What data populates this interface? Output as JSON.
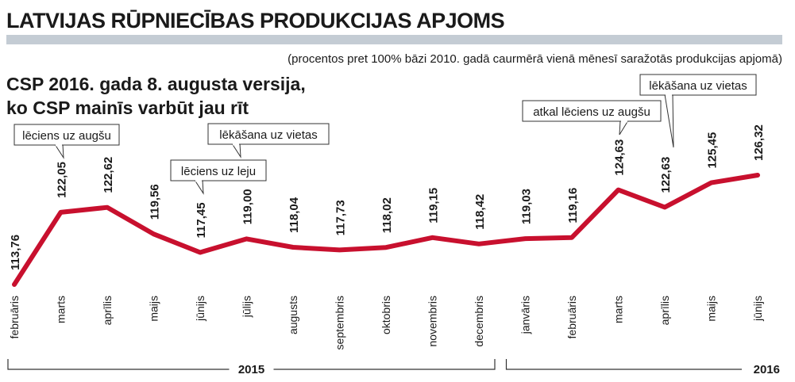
{
  "header": {
    "title": "LATVIJAS RŪPNIECĪBAS PRODUKCIJAS APJOMS",
    "subtitle": "(procentos pret 100% bāzi 2010. gadā caurmērā vienā mēnesī saražotās produkcijas apjomā)",
    "headline_line1": "CSP 2016. gada 8. augusta versija,",
    "headline_line2": "ko CSP mainīs varbūt jau rīt"
  },
  "colors": {
    "line": "#c8102e",
    "text": "#1a1a1a",
    "title_bar": "#c4ccd4"
  },
  "chart_data": {
    "type": "line",
    "title": "LATVIJAS RŪPNIECĪBAS PRODUKCIJAS APJOMS",
    "categories": [
      "februāris",
      "marts",
      "aprīlis",
      "maijs",
      "jūnijs",
      "jūlijs",
      "augusts",
      "septembris",
      "oktobris",
      "novembris",
      "decembris",
      "janvāris",
      "februāris",
      "marts",
      "aprīlis",
      "maijs",
      "jūnijs"
    ],
    "value_labels": [
      "113,76",
      "122,05",
      "122,62",
      "119,56",
      "117,45",
      "119,00",
      "118,04",
      "117,73",
      "118,02",
      "119,15",
      "118,42",
      "119,03",
      "119,16",
      "124,63",
      "122,63",
      "125,45",
      "126,32"
    ],
    "series": [
      {
        "values": [
          113.76,
          122.05,
          122.62,
          119.56,
          117.45,
          119.0,
          118.04,
          117.73,
          118.02,
          119.15,
          118.42,
          119.03,
          119.16,
          124.63,
          122.63,
          125.45,
          126.32
        ]
      }
    ],
    "years": [
      {
        "label": "2015",
        "from_index": 0,
        "to_index": 10
      },
      {
        "label": "2016",
        "from_index": 11,
        "to_index": 16
      }
    ],
    "annotations": [
      {
        "text": "lēciens uz augšu",
        "point_index": 1
      },
      {
        "text": "lēciens uz leju",
        "point_index": 4
      },
      {
        "text": "lēkāšana uz vietas",
        "point_index": 5
      },
      {
        "text": "atkal lēciens uz augšu",
        "point_index": 13
      },
      {
        "text": "lēkāšana uz vietas",
        "point_index": 14
      }
    ],
    "grid": false,
    "legend": "none"
  }
}
